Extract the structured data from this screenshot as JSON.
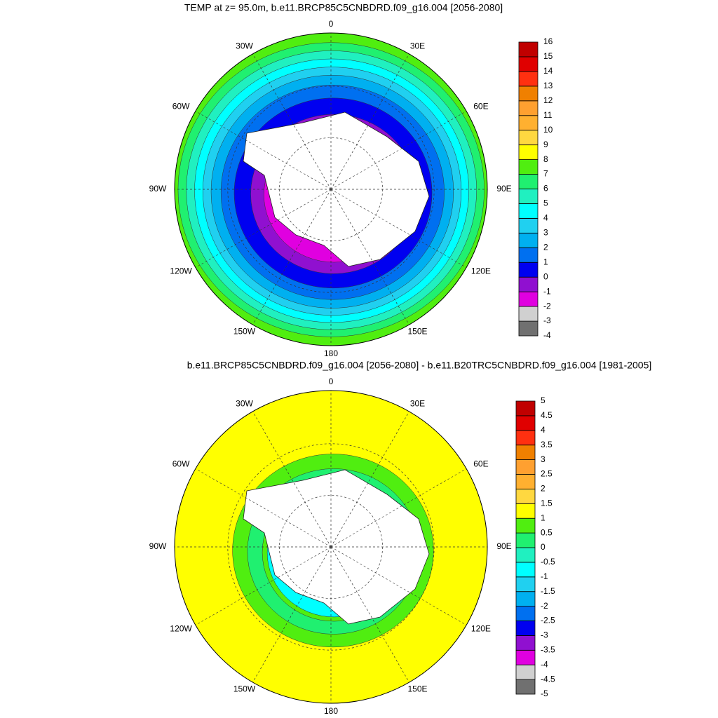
{
  "chart_data": [
    {
      "type": "polar-contour",
      "title": "TEMP at z=  95.0m, b.e11.BRCP85C5CNBDRD.f09_g16.004 [2056-2080]",
      "lon_labels": [
        "0",
        "30E",
        "60E",
        "90E",
        "120E",
        "150E",
        "180",
        "150W",
        "120W",
        "90W",
        "60W",
        "30W"
      ],
      "colorbar": {
        "levels": [
          -4,
          -3,
          -2,
          -1,
          0,
          1,
          2,
          3,
          4,
          5,
          6,
          7,
          8,
          9,
          10,
          11,
          12,
          13,
          14,
          15,
          16
        ],
        "colors": [
          "#707070",
          "#d0d0d0",
          "#e000e0",
          "#9010d0",
          "#0000f0",
          "#0070f0",
          "#00b0f0",
          "#20d0f0",
          "#00ffff",
          "#20f0c0",
          "#20f070",
          "#50ee10",
          "#ffff00",
          "#ffd840",
          "#ffb030",
          "#ffa030",
          "#f08000",
          "#ff3010",
          "#e00000",
          "#c00000"
        ]
      }
    },
    {
      "type": "polar-contour",
      "title": "b.e11.BRCP85C5CNBDRD.f09_g16.004 [2056-2080] - b.e11.B20TRC5CNBDRD.f09_g16.004 [1981-2005]",
      "lon_labels": [
        "0",
        "30E",
        "60E",
        "90E",
        "120E",
        "150E",
        "180",
        "150W",
        "120W",
        "90W",
        "60W",
        "30W"
      ],
      "colorbar": {
        "levels": [
          -5,
          -4.5,
          -4,
          -3.5,
          -3,
          -2.5,
          -2,
          -1.5,
          -1,
          -0.5,
          0,
          0.5,
          1,
          1.5,
          2,
          2.5,
          3,
          3.5,
          4,
          4.5,
          5
        ],
        "colors": [
          "#707070",
          "#d0d0d0",
          "#e000e0",
          "#9010d0",
          "#0000f0",
          "#0070f0",
          "#00b0f0",
          "#20d0f0",
          "#00ffff",
          "#20f0c0",
          "#20f070",
          "#50ee10",
          "#ffff00",
          "#ffd840",
          "#ffb030",
          "#ffa030",
          "#f08000",
          "#ff3010",
          "#e00000",
          "#c00000"
        ]
      }
    }
  ]
}
